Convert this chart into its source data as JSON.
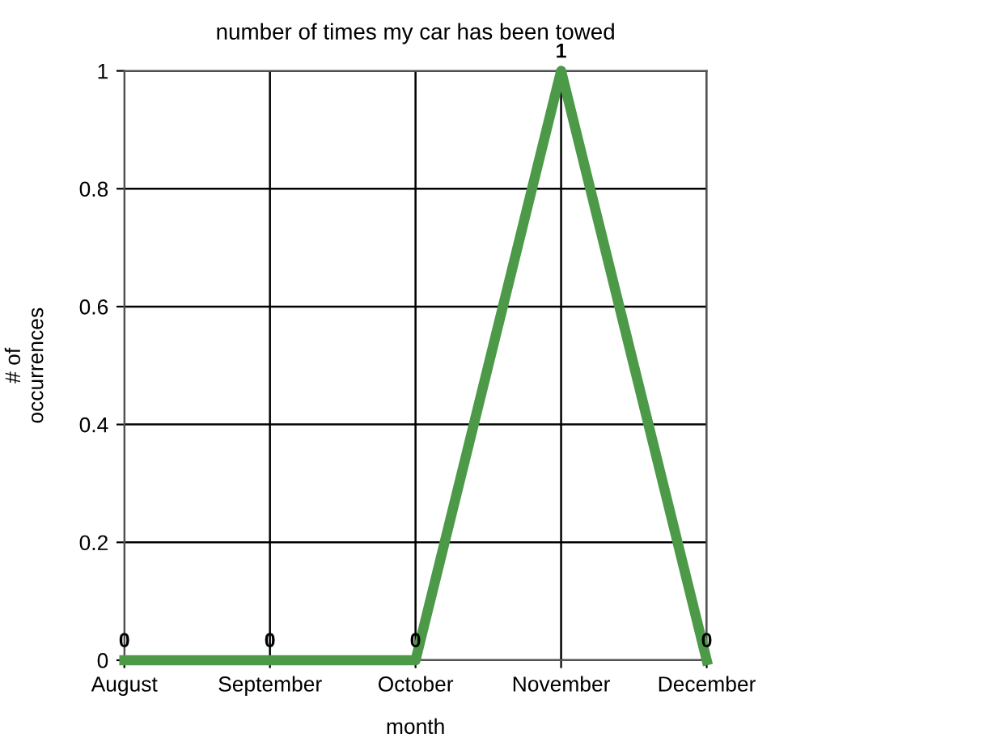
{
  "chart_data": {
    "type": "line",
    "title": "number of times my car has been towed",
    "xlabel": "month",
    "ylabel": "# of\noccurrences",
    "categories": [
      "August",
      "September",
      "October",
      "November",
      "December"
    ],
    "series": [
      {
        "color": "#4c9a48",
        "values": [
          0,
          0,
          0,
          1,
          0
        ]
      }
    ],
    "ylim": [
      0,
      1
    ],
    "yticks": [
      0,
      0.2,
      0.4,
      0.6,
      0.8,
      1
    ],
    "data_labels": true,
    "grid": true,
    "marker": "none",
    "line_style": "solid"
  }
}
